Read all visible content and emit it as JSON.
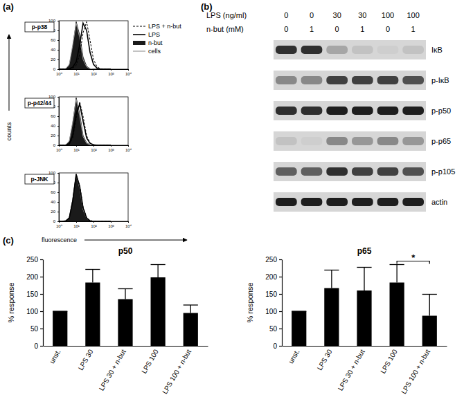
{
  "panel_labels": [
    "(a)",
    "(b)",
    "(c)"
  ],
  "histograms": {
    "type": "line",
    "y_label": "counts",
    "x_label": "fluorescence",
    "log": "x",
    "xlim": [
      1,
      10000
    ],
    "xticks": [
      {
        "value": 1,
        "label": "10⁰"
      },
      {
        "value": 10,
        "label": "10¹"
      },
      {
        "value": 100,
        "label": "10²"
      },
      {
        "value": 1000,
        "label": "10³"
      },
      {
        "value": 10000,
        "label": "10⁴"
      }
    ],
    "ylim": [
      0,
      100
    ],
    "yticks": [
      0,
      20,
      40,
      60,
      80,
      100
    ],
    "legend": "right",
    "x": [
      1,
      1.6,
      2.5,
      4,
      6.3,
      10,
      16,
      25,
      40,
      63,
      100,
      160,
      250,
      400,
      630,
      1000
    ],
    "series": [
      {
        "name": "LPS + n-but",
        "color": "#000000",
        "type": "line",
        "line_style": "dashed"
      },
      {
        "name": "LPS",
        "color": "#000000",
        "type": "line",
        "line_style": "solid"
      },
      {
        "name": "n-but",
        "color": "#1a1a1a",
        "type": "area",
        "line_style": "solid"
      },
      {
        "name": "cells",
        "color": "#9a9a9a",
        "type": "line",
        "line_style": "solid"
      }
    ],
    "panels": [
      {
        "title": "p-p38",
        "values": [
          [
            0,
            0,
            0,
            0,
            2,
            8,
            30,
            75,
            98,
            60,
            20,
            5,
            1,
            0,
            0,
            0
          ],
          [
            0,
            0,
            0,
            1,
            4,
            15,
            50,
            95,
            80,
            35,
            10,
            2,
            0,
            0,
            0,
            0
          ],
          [
            0,
            0,
            1,
            8,
            45,
            98,
            70,
            25,
            6,
            1,
            0,
            0,
            0,
            0,
            0,
            0
          ],
          [
            0,
            0,
            1,
            10,
            50,
            95,
            65,
            20,
            5,
            1,
            0,
            0,
            0,
            0,
            0,
            0
          ]
        ]
      },
      {
        "title": "p-p42/44",
        "values": [
          [
            0,
            0,
            0,
            2,
            15,
            55,
            90,
            60,
            20,
            5,
            1,
            0,
            0,
            0,
            0,
            0
          ],
          [
            0,
            0,
            0,
            3,
            20,
            65,
            85,
            50,
            15,
            4,
            1,
            0,
            0,
            0,
            0,
            0
          ],
          [
            0,
            0,
            1,
            8,
            45,
            98,
            65,
            20,
            5,
            1,
            0,
            0,
            0,
            0,
            0,
            0
          ],
          [
            0,
            0,
            1,
            9,
            48,
            95,
            60,
            18,
            4,
            1,
            0,
            0,
            0,
            0,
            0,
            0
          ]
        ]
      },
      {
        "title": "p-JNK",
        "values": [
          [
            0,
            0,
            1,
            6,
            40,
            95,
            75,
            30,
            8,
            2,
            0,
            0,
            0,
            0,
            0,
            0
          ],
          [
            0,
            0,
            1,
            7,
            42,
            97,
            72,
            28,
            7,
            1,
            0,
            0,
            0,
            0,
            0,
            0
          ],
          [
            0,
            0,
            1,
            8,
            45,
            98,
            70,
            25,
            6,
            1,
            0,
            0,
            0,
            0,
            0,
            0
          ],
          [
            0,
            0,
            1,
            8,
            44,
            96,
            68,
            24,
            6,
            1,
            0,
            0,
            0,
            0,
            0,
            0
          ]
        ]
      }
    ]
  },
  "blot": {
    "lps_label": "LPS (ng/ml)",
    "lps": [
      0,
      0,
      30,
      30,
      100,
      100
    ],
    "nbut_label": "n-but (mM)",
    "nbut": [
      0,
      1,
      0,
      1,
      0,
      1
    ],
    "bands": [
      {
        "name": "IκB",
        "intensity": [
          0.85,
          0.85,
          0.45,
          0.35,
          0.3,
          0.35
        ]
      },
      {
        "name": "p-IκB",
        "intensity": [
          0.55,
          0.55,
          0.8,
          0.8,
          0.8,
          0.75
        ]
      },
      {
        "name": "p-p50",
        "intensity": [
          0.85,
          0.85,
          0.9,
          0.9,
          0.9,
          0.9
        ]
      },
      {
        "name": "p-p65",
        "intensity": [
          0.35,
          0.3,
          0.55,
          0.5,
          0.55,
          0.5
        ]
      },
      {
        "name": "p-p105",
        "intensity": [
          0.7,
          0.7,
          0.85,
          0.8,
          0.8,
          0.75
        ]
      },
      {
        "name": "actin",
        "intensity": [
          0.9,
          0.9,
          0.9,
          0.9,
          0.9,
          0.9
        ]
      }
    ]
  },
  "chart_data": [
    {
      "type": "bar",
      "title": "p50",
      "y_label": "% response",
      "categories": [
        "unst.",
        "LPS 30",
        "LPS 30 + n-but",
        "LPS 100",
        "LPS 100 + n-but"
      ],
      "values": [
        100,
        183,
        135,
        198,
        95
      ],
      "errors": [
        0,
        38,
        30,
        37,
        23
      ],
      "color": "#000000",
      "ylim": [
        0,
        250
      ],
      "yticks": [
        0,
        50,
        100,
        150,
        200,
        250
      ]
    },
    {
      "type": "bar",
      "title": "p65",
      "y_label": "% response",
      "categories": [
        "unst.",
        "LPS 30",
        "LPS 30 + n-but",
        "LPS 100",
        "LPS 100 + n-but"
      ],
      "values": [
        100,
        167,
        160,
        183,
        87
      ],
      "errors": [
        0,
        52,
        67,
        52,
        62
      ],
      "color": "#000000",
      "ylim": [
        0,
        250
      ],
      "yticks": [
        0,
        50,
        100,
        150,
        200,
        250
      ],
      "annotations": [
        {
          "text": "*",
          "from": 3,
          "to": 4,
          "y": 245
        }
      ]
    }
  ]
}
